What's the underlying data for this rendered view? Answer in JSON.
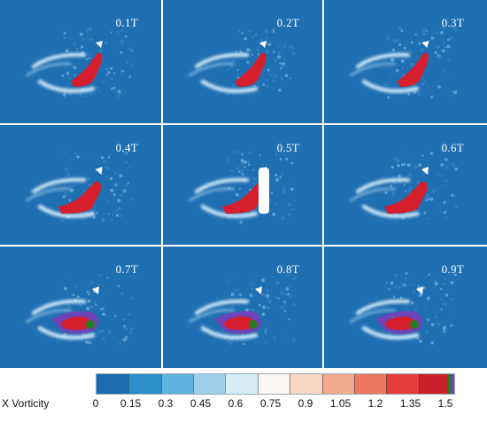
{
  "panels": [
    {
      "label": "0.1T",
      "phase": 1
    },
    {
      "label": "0.2T",
      "phase": 2
    },
    {
      "label": "0.3T",
      "phase": 3
    },
    {
      "label": "0.4T",
      "phase": 4
    },
    {
      "label": "0.5T",
      "phase": 5
    },
    {
      "label": "0.6T",
      "phase": 6
    },
    {
      "label": "0.7T",
      "phase": 7
    },
    {
      "label": "0.8T",
      "phase": 8
    },
    {
      "label": "0.9T",
      "phase": 9
    }
  ],
  "colorbar": {
    "title": "X Vorticity",
    "ticks": [
      "0",
      "0.15",
      "0.3",
      "0.45",
      "0.6",
      "0.75",
      "0.9",
      "1.05",
      "1.2",
      "1.35",
      "1.5"
    ],
    "colors": [
      "#1a6bb0",
      "#2c8fca",
      "#5db3dd",
      "#9fd0ea",
      "#d8ecf6",
      "#fbf6f2",
      "#f8d6c4",
      "#f3a98c",
      "#ec7660",
      "#e33c3a",
      "#c8202a"
    ],
    "end_colors": [
      "#2a7a1f",
      "#7a3db8"
    ],
    "background_color": "#1f6fb3",
    "vortex_color": "#d61f2c"
  }
}
